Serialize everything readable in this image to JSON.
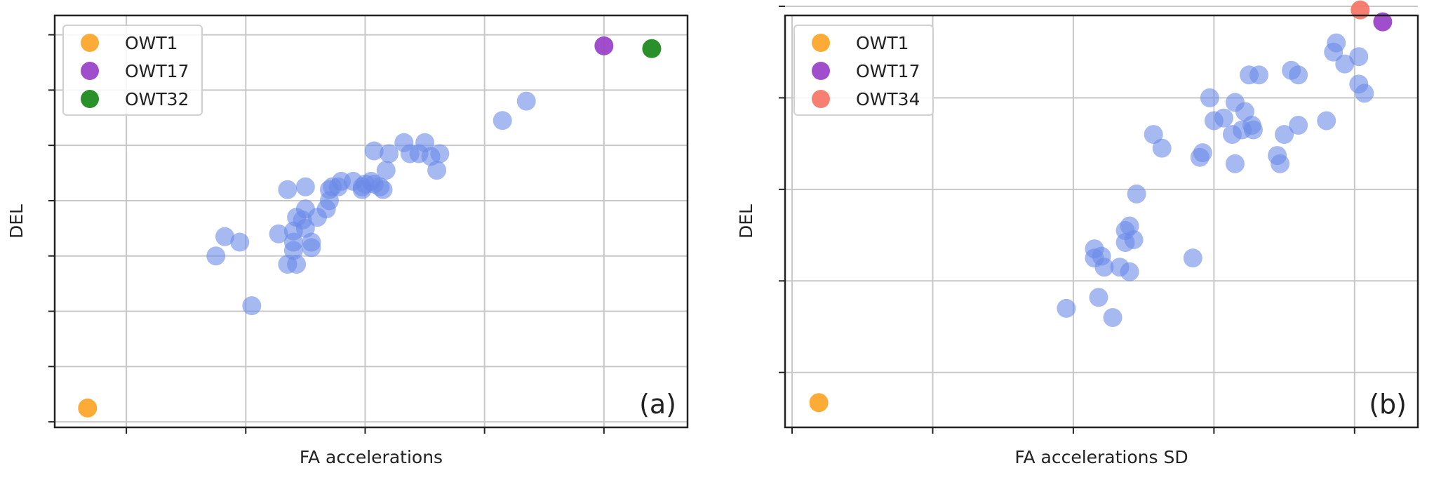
{
  "chart_data": [
    {
      "type": "scatter",
      "panel_label": "(a)",
      "xlabel": "FA accelerations",
      "ylabel": "DEL",
      "xlim": [
        0,
        10.6
      ],
      "ylim": [
        0,
        7.45
      ],
      "xticks": [
        1.2,
        3.2,
        5.2,
        7.2,
        9.2
      ],
      "yticks": [
        0.1,
        1.1,
        2.1,
        3.1,
        4.1,
        5.1,
        6.1,
        7.1
      ],
      "grid": true,
      "legend_position": "top-left",
      "series": [
        {
          "name": "OWT1",
          "color": "#FBA62B",
          "opacity": 0.95,
          "points": [
            [
              0.55,
              0.35
            ]
          ]
        },
        {
          "name": "OWT17",
          "color": "#9B45C9",
          "opacity": 0.95,
          "points": [
            [
              9.2,
              6.9
            ]
          ]
        },
        {
          "name": "OWT32",
          "color": "#1F8A1F",
          "opacity": 0.95,
          "points": [
            [
              10.0,
              6.85
            ]
          ]
        },
        {
          "name": "",
          "color": "#6B8BE8",
          "opacity": 0.6,
          "points": [
            [
              2.7,
              3.1
            ],
            [
              2.85,
              3.45
            ],
            [
              3.1,
              3.35
            ],
            [
              3.3,
              2.2
            ],
            [
              3.75,
              3.5
            ],
            [
              3.9,
              4.3
            ],
            [
              3.9,
              2.95
            ],
            [
              4.0,
              3.2
            ],
            [
              4.0,
              3.35
            ],
            [
              4.0,
              3.55
            ],
            [
              4.05,
              3.8
            ],
            [
              4.05,
              2.95
            ],
            [
              4.15,
              3.75
            ],
            [
              4.2,
              3.6
            ],
            [
              4.2,
              3.95
            ],
            [
              4.2,
              4.35
            ],
            [
              4.3,
              3.35
            ],
            [
              4.3,
              3.25
            ],
            [
              4.4,
              3.8
            ],
            [
              4.55,
              3.95
            ],
            [
              4.6,
              4.1
            ],
            [
              4.6,
              4.3
            ],
            [
              4.65,
              4.35
            ],
            [
              4.75,
              4.35
            ],
            [
              4.8,
              4.45
            ],
            [
              5.0,
              4.45
            ],
            [
              5.15,
              4.3
            ],
            [
              5.15,
              4.35
            ],
            [
              5.2,
              4.4
            ],
            [
              5.3,
              4.45
            ],
            [
              5.35,
              5.0
            ],
            [
              5.35,
              4.4
            ],
            [
              5.45,
              4.35
            ],
            [
              5.5,
              4.3
            ],
            [
              5.55,
              4.65
            ],
            [
              5.6,
              4.95
            ],
            [
              5.85,
              5.15
            ],
            [
              5.95,
              4.95
            ],
            [
              6.1,
              4.95
            ],
            [
              6.2,
              5.15
            ],
            [
              6.3,
              4.9
            ],
            [
              6.4,
              4.65
            ],
            [
              6.45,
              4.95
            ],
            [
              7.5,
              5.55
            ],
            [
              7.9,
              5.9
            ]
          ]
        }
      ]
    },
    {
      "type": "scatter",
      "panel_label": "(b)",
      "xlabel": "FA accelerations SD",
      "ylabel": "DEL",
      "xlim": [
        0,
        4.5
      ],
      "ylim": [
        0,
        4.5
      ],
      "xticks": [
        0.05,
        1.05,
        2.05,
        3.05,
        4.05
      ],
      "yticks": [
        0.6,
        1.6,
        2.6,
        3.6,
        4.6
      ],
      "grid": true,
      "legend_position": "top-left",
      "series": [
        {
          "name": "OWT1",
          "color": "#FBA62B",
          "opacity": 0.95,
          "points": [
            [
              0.24,
              0.27
            ]
          ]
        },
        {
          "name": "OWT17",
          "color": "#9B45C9",
          "opacity": 0.95,
          "points": [
            [
              4.25,
              4.43
            ]
          ]
        },
        {
          "name": "OWT34",
          "color": "#F5786A",
          "opacity": 0.95,
          "points": [
            [
              4.09,
              4.56
            ]
          ]
        },
        {
          "name": "",
          "color": "#6B8BE8",
          "opacity": 0.6,
          "points": [
            [
              2.0,
              1.3
            ],
            [
              2.2,
              1.85
            ],
            [
              2.2,
              1.95
            ],
            [
              2.23,
              1.42
            ],
            [
              2.25,
              1.87
            ],
            [
              2.27,
              1.75
            ],
            [
              2.33,
              1.2
            ],
            [
              2.38,
              1.75
            ],
            [
              2.42,
              2.02
            ],
            [
              2.42,
              2.15
            ],
            [
              2.45,
              2.2
            ],
            [
              2.45,
              1.7
            ],
            [
              2.48,
              2.05
            ],
            [
              2.5,
              2.55
            ],
            [
              2.62,
              3.2
            ],
            [
              2.68,
              3.05
            ],
            [
              2.9,
              1.85
            ],
            [
              2.95,
              2.95
            ],
            [
              2.97,
              3.0
            ],
            [
              3.02,
              3.6
            ],
            [
              3.05,
              3.35
            ],
            [
              3.12,
              3.38
            ],
            [
              3.18,
              3.2
            ],
            [
              3.2,
              3.55
            ],
            [
              3.2,
              2.88
            ],
            [
              3.25,
              3.25
            ],
            [
              3.27,
              3.45
            ],
            [
              3.3,
              3.85
            ],
            [
              3.32,
              3.3
            ],
            [
              3.33,
              3.25
            ],
            [
              3.37,
              3.85
            ],
            [
              3.5,
              2.97
            ],
            [
              3.52,
              2.88
            ],
            [
              3.55,
              3.2
            ],
            [
              3.6,
              3.9
            ],
            [
              3.65,
              3.85
            ],
            [
              3.65,
              3.3
            ],
            [
              3.85,
              3.35
            ],
            [
              3.9,
              4.1
            ],
            [
              3.92,
              4.2
            ],
            [
              3.98,
              3.97
            ],
            [
              4.08,
              3.75
            ],
            [
              4.12,
              3.65
            ],
            [
              4.08,
              4.05
            ]
          ]
        }
      ]
    }
  ]
}
